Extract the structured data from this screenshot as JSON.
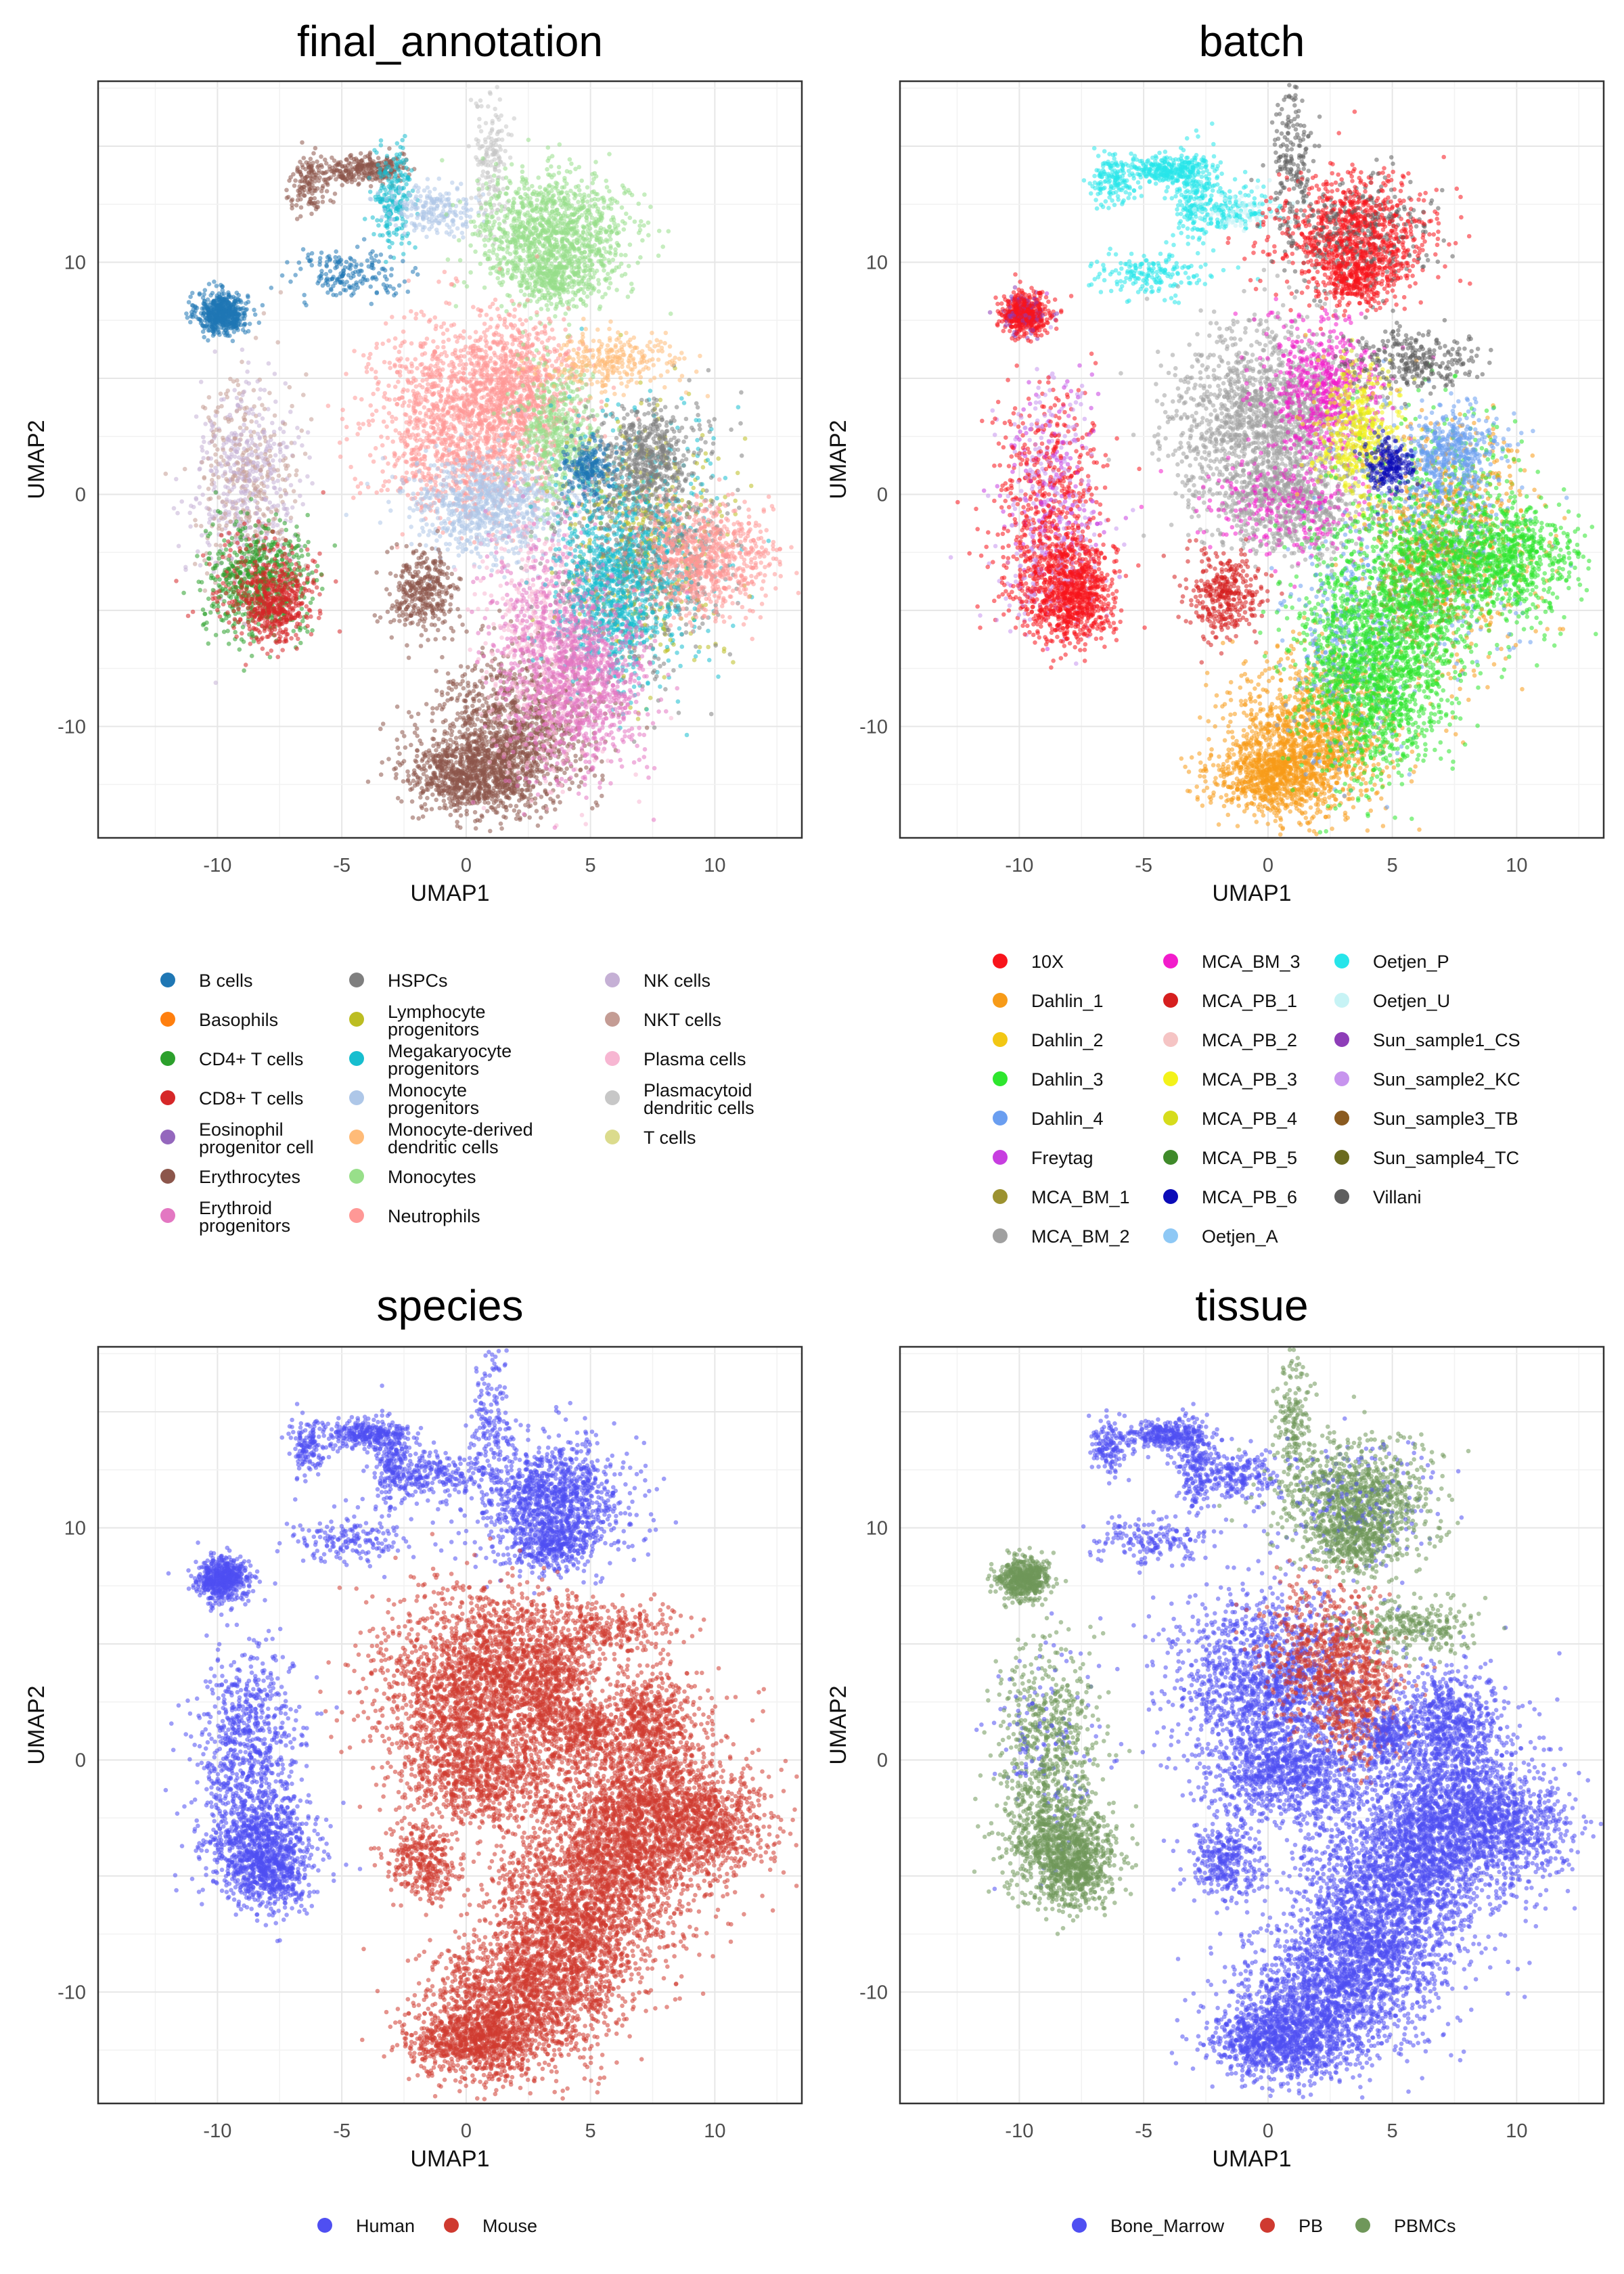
{
  "chart_data": [
    {
      "type": "scatter",
      "title": "final_annotation",
      "xlabel": "UMAP1",
      "ylabel": "UMAP2",
      "xlim": [
        -14.8,
        13.5
      ],
      "ylim": [
        -14.8,
        17.8
      ],
      "x_ticks": [
        "-10",
        "-5",
        "0",
        "5",
        "10"
      ],
      "y_ticks": [
        "-10",
        "0",
        "10"
      ],
      "grid": true,
      "legend_position": "bottom",
      "series": [
        {
          "name": "B cells",
          "color": "#1f77b4"
        },
        {
          "name": "Basophils",
          "color": "#ff7f0e"
        },
        {
          "name": "CD4+ T cells",
          "color": "#2ca02c"
        },
        {
          "name": "CD8+ T cells",
          "color": "#d62728"
        },
        {
          "name": "Eosinophil progenitor cell",
          "color": "#9467bd"
        },
        {
          "name": "Erythrocytes",
          "color": "#8c564b"
        },
        {
          "name": "Erythroid progenitors",
          "color": "#e377c2"
        },
        {
          "name": "HSPCs",
          "color": "#7f7f7f"
        },
        {
          "name": "Lymphocyte progenitors",
          "color": "#bcbd22"
        },
        {
          "name": "Megakaryocyte progenitors",
          "color": "#17becf"
        },
        {
          "name": "Monocyte progenitors",
          "color": "#aec7e8"
        },
        {
          "name": "Monocyte-derived dendritic cells",
          "color": "#ffbb78"
        },
        {
          "name": "Monocytes",
          "color": "#98df8a"
        },
        {
          "name": "Neutrophils",
          "color": "#ff9896"
        },
        {
          "name": "NK cells",
          "color": "#c5b0d5"
        },
        {
          "name": "NKT cells",
          "color": "#c49c94"
        },
        {
          "name": "Plasma cells",
          "color": "#f7b6d2"
        },
        {
          "name": "Plasmacytoid dendritic cells",
          "color": "#c7c7c7"
        },
        {
          "name": "T cells",
          "color": "#dbdb8d"
        }
      ]
    },
    {
      "type": "scatter",
      "title": "batch",
      "xlabel": "UMAP1",
      "ylabel": "UMAP2",
      "xlim": [
        -14.8,
        13.5
      ],
      "ylim": [
        -14.8,
        17.8
      ],
      "x_ticks": [
        "-10",
        "-5",
        "0",
        "5",
        "10"
      ],
      "y_ticks": [
        "-10",
        "0",
        "10"
      ],
      "grid": true,
      "legend_position": "bottom",
      "series": [
        {
          "name": "10X",
          "color": "#f8141b"
        },
        {
          "name": "Dahlin_1",
          "color": "#f79b18"
        },
        {
          "name": "Dahlin_2",
          "color": "#f2c714"
        },
        {
          "name": "Dahlin_3",
          "color": "#2ee62e"
        },
        {
          "name": "Dahlin_4",
          "color": "#6a9ef0"
        },
        {
          "name": "Freytag",
          "color": "#c73ee0"
        },
        {
          "name": "MCA_BM_1",
          "color": "#9c9230"
        },
        {
          "name": "MCA_BM_2",
          "color": "#a0a0a0"
        },
        {
          "name": "MCA_BM_3",
          "color": "#f21ccb"
        },
        {
          "name": "MCA_PB_1",
          "color": "#d61f1f"
        },
        {
          "name": "MCA_PB_2",
          "color": "#f5c4c4"
        },
        {
          "name": "MCA_PB_3",
          "color": "#f3f21a"
        },
        {
          "name": "MCA_PB_4",
          "color": "#d6dc1c"
        },
        {
          "name": "MCA_PB_5",
          "color": "#3f8a2a"
        },
        {
          "name": "MCA_PB_6",
          "color": "#0b0bb8"
        },
        {
          "name": "Oetjen_A",
          "color": "#8ec8f5"
        },
        {
          "name": "Oetjen_P",
          "color": "#27e5ea"
        },
        {
          "name": "Oetjen_U",
          "color": "#c7f3f5"
        },
        {
          "name": "Sun_sample1_CS",
          "color": "#8e3db8"
        },
        {
          "name": "Sun_sample2_KC",
          "color": "#c794ee"
        },
        {
          "name": "Sun_sample3_TB",
          "color": "#8a5a1f"
        },
        {
          "name": "Sun_sample4_TC",
          "color": "#6b6b1f"
        },
        {
          "name": "Villani",
          "color": "#5e5e5e"
        }
      ]
    },
    {
      "type": "scatter",
      "title": "species",
      "xlabel": "UMAP1",
      "ylabel": "UMAP2",
      "xlim": [
        -14.8,
        13.5
      ],
      "ylim": [
        -14.8,
        17.8
      ],
      "x_ticks": [
        "-10",
        "-5",
        "0",
        "5",
        "10"
      ],
      "y_ticks": [
        "-10",
        "0",
        "10"
      ],
      "grid": true,
      "legend_position": "bottom",
      "series": [
        {
          "name": "Human",
          "color": "#4f4ff2"
        },
        {
          "name": "Mouse",
          "color": "#cf3a30"
        }
      ]
    },
    {
      "type": "scatter",
      "title": "tissue",
      "xlabel": "UMAP1",
      "ylabel": "UMAP2",
      "xlim": [
        -14.8,
        13.5
      ],
      "ylim": [
        -14.8,
        17.8
      ],
      "x_ticks": [
        "-10",
        "-5",
        "0",
        "5",
        "10"
      ],
      "y_ticks": [
        "-10",
        "0",
        "10"
      ],
      "grid": true,
      "legend_position": "bottom",
      "series": [
        {
          "name": "Bone_Marrow",
          "color": "#4f4ff2"
        },
        {
          "name": "PB",
          "color": "#cf3a30"
        },
        {
          "name": "PBMCs",
          "color": "#6f975a"
        }
      ]
    }
  ]
}
